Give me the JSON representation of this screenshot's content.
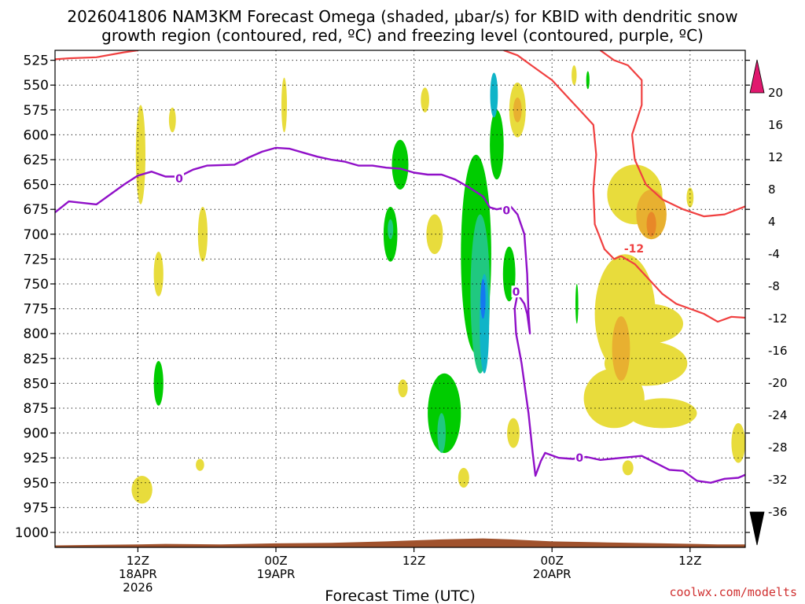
{
  "chart_data": {
    "type": "heatmap",
    "title_line1": "2026041806 NAM3KM Forecast Omega (shaded, μbar/s) for KBID with dendritic snow",
    "title_line2": "growth region (contoured, red, ºC) and freezing level (contoured, purple, ºC)",
    "xlabel": "Forecast Time (UTC)",
    "credit": "coolwx.com/modelts",
    "y_levels": [
      525,
      550,
      575,
      600,
      625,
      650,
      675,
      700,
      725,
      750,
      775,
      800,
      825,
      850,
      875,
      900,
      925,
      950,
      975,
      1000
    ],
    "ylim": [
      1015,
      515
    ],
    "xlim": [
      -6,
      44
    ],
    "x_ticks": [
      {
        "hour": 0,
        "line1": "12Z",
        "line2": "18APR",
        "line3": "2026"
      },
      {
        "hour": 10,
        "line1": "00Z",
        "line2": "19APR",
        "line3": ""
      },
      {
        "hour": 20,
        "line1": "12Z",
        "line2": "",
        "line3": ""
      },
      {
        "hour": 30,
        "line1": "00Z",
        "line2": "20APR",
        "line3": ""
      },
      {
        "hour": 40,
        "line1": "12Z",
        "line2": "",
        "line3": ""
      }
    ],
    "grid": true,
    "colorbar": {
      "labels": [
        20,
        16,
        12,
        8,
        4,
        -4,
        -8,
        -12,
        -16,
        -20,
        -24,
        -28,
        -32,
        -36
      ],
      "colors": [
        "#f03c3c",
        "#f07828",
        "#e8b030",
        "#e8dc3c",
        "#ffffff",
        "#00cc00",
        "#20c880",
        "#10b4c8",
        "#1478f0",
        "#2040e0",
        "#7010c8",
        "#9010c0",
        "#a0a0a0"
      ],
      "top_cap_color": "#e0186e",
      "bottom_cap_color": "#000000"
    },
    "omega_colors": {
      "pos4": "#e8dc3c",
      "pos8": "#e8b030",
      "pos12": "#e88828",
      "neg4": "#00cc00",
      "neg8": "#20c880",
      "neg12": "#10b4c8",
      "neg16": "#1478f0"
    },
    "omega_blobs": [
      {
        "x": 0.2,
        "p": 620,
        "w": 0.35,
        "h": 100,
        "v": 4
      },
      {
        "x": 2.5,
        "p": 585,
        "w": 0.25,
        "h": 25,
        "v": 4
      },
      {
        "x": 4.7,
        "p": 700,
        "w": 0.35,
        "h": 55,
        "v": 4
      },
      {
        "x": 1.5,
        "p": 740,
        "w": 0.35,
        "h": 45,
        "v": 4
      },
      {
        "x": 1.5,
        "p": 850,
        "w": 0.35,
        "h": 45,
        "v": -4
      },
      {
        "x": 0.3,
        "p": 957,
        "w": 0.75,
        "h": 28,
        "v": 4
      },
      {
        "x": 4.5,
        "p": 932,
        "w": 0.3,
        "h": 12,
        "v": 4
      },
      {
        "x": 10.6,
        "p": 570,
        "w": 0.2,
        "h": 55,
        "v": 4
      },
      {
        "x": 18.3,
        "p": 700,
        "w": 0.5,
        "h": 55,
        "v": -4
      },
      {
        "x": 19.0,
        "p": 630,
        "w": 0.6,
        "h": 50,
        "v": -4
      },
      {
        "x": 18.3,
        "p": 695,
        "w": 0.2,
        "h": 20,
        "v": -8
      },
      {
        "x": 19.2,
        "p": 855,
        "w": 0.35,
        "h": 18,
        "v": 4
      },
      {
        "x": 20.8,
        "p": 565,
        "w": 0.3,
        "h": 25,
        "v": 4
      },
      {
        "x": 21.5,
        "p": 700,
        "w": 0.6,
        "h": 40,
        "v": 4
      },
      {
        "x": 22.2,
        "p": 880,
        "w": 1.2,
        "h": 80,
        "v": -4
      },
      {
        "x": 22.0,
        "p": 900,
        "w": 0.3,
        "h": 40,
        "v": -8
      },
      {
        "x": 24.5,
        "p": 720,
        "w": 1.1,
        "h": 200,
        "v": -4
      },
      {
        "x": 24.8,
        "p": 760,
        "w": 0.7,
        "h": 160,
        "v": -8
      },
      {
        "x": 25.1,
        "p": 790,
        "w": 0.35,
        "h": 100,
        "v": -12
      },
      {
        "x": 25.0,
        "p": 765,
        "w": 0.18,
        "h": 40,
        "v": -16
      },
      {
        "x": 26.0,
        "p": 610,
        "w": 0.5,
        "h": 70,
        "v": -4
      },
      {
        "x": 25.8,
        "p": 560,
        "w": 0.28,
        "h": 45,
        "v": -12
      },
      {
        "x": 26.9,
        "p": 740,
        "w": 0.45,
        "h": 55,
        "v": -4
      },
      {
        "x": 27.2,
        "p": 900,
        "w": 0.45,
        "h": 30,
        "v": 4
      },
      {
        "x": 23.6,
        "p": 945,
        "w": 0.4,
        "h": 20,
        "v": 4
      },
      {
        "x": 27.5,
        "p": 575,
        "w": 0.6,
        "h": 55,
        "v": 4
      },
      {
        "x": 27.5,
        "p": 575,
        "w": 0.3,
        "h": 25,
        "v": 8
      },
      {
        "x": 31.6,
        "p": 540,
        "w": 0.18,
        "h": 20,
        "v": 4
      },
      {
        "x": 32.6,
        "p": 545,
        "w": 0.12,
        "h": 18,
        "v": -4
      },
      {
        "x": 31.8,
        "p": 770,
        "w": 0.1,
        "h": 40,
        "v": -4
      },
      {
        "x": 36.0,
        "p": 660,
        "w": 2.0,
        "h": 60,
        "v": 4
      },
      {
        "x": 35.3,
        "p": 780,
        "w": 2.2,
        "h": 120,
        "v": 4
      },
      {
        "x": 34.5,
        "p": 865,
        "w": 2.2,
        "h": 60,
        "v": 4
      },
      {
        "x": 37.0,
        "p": 790,
        "w": 2.5,
        "h": 40,
        "v": 4
      },
      {
        "x": 37.2,
        "p": 680,
        "w": 1.1,
        "h": 50,
        "v": 8
      },
      {
        "x": 37.2,
        "p": 690,
        "w": 0.35,
        "h": 25,
        "v": 12
      },
      {
        "x": 35.0,
        "p": 815,
        "w": 0.65,
        "h": 65,
        "v": 8
      },
      {
        "x": 36.8,
        "p": 830,
        "w": 3.0,
        "h": 45,
        "v": 4
      },
      {
        "x": 38.0,
        "p": 880,
        "w": 2.5,
        "h": 30,
        "v": 4
      },
      {
        "x": 35.5,
        "p": 935,
        "w": 0.4,
        "h": 15,
        "v": 4
      },
      {
        "x": 40.0,
        "p": 663,
        "w": 0.25,
        "h": 20,
        "v": 4
      },
      {
        "x": 43.5,
        "p": 910,
        "w": 0.5,
        "h": 40,
        "v": 4
      }
    ],
    "freezing_level": {
      "label": "0",
      "points": [
        [
          -6,
          678
        ],
        [
          -5,
          667
        ],
        [
          -3,
          670
        ],
        [
          -1,
          650
        ],
        [
          0,
          641
        ],
        [
          1,
          637
        ],
        [
          2,
          642
        ],
        [
          3,
          642
        ],
        [
          4,
          635
        ],
        [
          5,
          631
        ],
        [
          7,
          630
        ],
        [
          8,
          623
        ],
        [
          9,
          617
        ],
        [
          10,
          613
        ],
        [
          11,
          614
        ],
        [
          12,
          618
        ],
        [
          13,
          622
        ],
        [
          14,
          625
        ],
        [
          15,
          627
        ],
        [
          16,
          631
        ],
        [
          17,
          631
        ],
        [
          18,
          633
        ],
        [
          19,
          634
        ],
        [
          20,
          638
        ],
        [
          21,
          640
        ],
        [
          22,
          640
        ],
        [
          23,
          645
        ],
        [
          24,
          653
        ],
        [
          25,
          662
        ],
        [
          25.5,
          673
        ],
        [
          26,
          675
        ],
        [
          27,
          672
        ],
        [
          27.5,
          680
        ],
        [
          28,
          700
        ],
        [
          28.2,
          740
        ],
        [
          28.3,
          780
        ],
        [
          28.4,
          800
        ],
        [
          28.2,
          780
        ],
        [
          28.0,
          770
        ],
        [
          27.5,
          760
        ],
        [
          27.3,
          775
        ],
        [
          27.4,
          800
        ],
        [
          27.6,
          815
        ],
        [
          27.8,
          830
        ],
        [
          28.0,
          850
        ],
        [
          28.3,
          880
        ],
        [
          28.6,
          920
        ],
        [
          28.8,
          943
        ],
        [
          29.2,
          928
        ],
        [
          29.5,
          920
        ],
        [
          30.5,
          925
        ],
        [
          31.5,
          926
        ],
        [
          32.5,
          924
        ],
        [
          33.5,
          927
        ],
        [
          35,
          925
        ],
        [
          36.5,
          923
        ],
        [
          37.5,
          930
        ],
        [
          38.5,
          937
        ],
        [
          39.5,
          938
        ],
        [
          40.5,
          948
        ],
        [
          41.5,
          950
        ],
        [
          42.5,
          946
        ],
        [
          43.5,
          945
        ],
        [
          44,
          942
        ]
      ],
      "labels_at": [
        [
          3,
          644
        ],
        [
          26.7,
          676
        ],
        [
          27.4,
          758
        ],
        [
          32,
          925
        ]
      ]
    },
    "dgz_contours": {
      "label": "-12",
      "cold_side": [
        [
          -6,
          524
        ],
        [
          -5,
          523
        ],
        [
          -3,
          522
        ],
        [
          -1,
          517
        ],
        [
          0,
          515
        ]
      ],
      "right_curve_a": [
        [
          26.5,
          515
        ],
        [
          27.5,
          520
        ],
        [
          28.5,
          530
        ],
        [
          29.5,
          540
        ],
        [
          30,
          545
        ],
        [
          31,
          560
        ],
        [
          32,
          575
        ],
        [
          33,
          590
        ],
        [
          33.2,
          620
        ],
        [
          33.0,
          655
        ],
        [
          33.1,
          690
        ],
        [
          33.8,
          715
        ],
        [
          34.5,
          725
        ],
        [
          35.0,
          722
        ]
      ],
      "right_curve_b": [
        [
          33.5,
          515
        ],
        [
          34.5,
          525
        ],
        [
          35.5,
          530
        ],
        [
          36.5,
          545
        ],
        [
          36.5,
          570
        ],
        [
          35.8,
          600
        ],
        [
          36,
          625
        ],
        [
          36.8,
          650
        ],
        [
          38,
          665
        ],
        [
          39.5,
          675
        ],
        [
          41,
          682
        ],
        [
          42.5,
          680
        ],
        [
          44,
          672
        ]
      ],
      "right_curve_c": [
        [
          35.0,
          722
        ],
        [
          36,
          730
        ],
        [
          37,
          745
        ],
        [
          38,
          760
        ],
        [
          39,
          770
        ],
        [
          40,
          775
        ],
        [
          41,
          780
        ],
        [
          42,
          788
        ],
        [
          43,
          783
        ],
        [
          44,
          784
        ]
      ],
      "label_at": [
        35.2,
        715
      ]
    }
  }
}
